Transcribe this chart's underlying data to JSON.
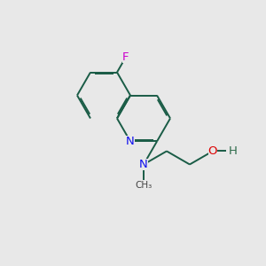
{
  "background_color": "#e8e8e8",
  "bond_color": "#1a5c46",
  "bond_lw": 1.4,
  "dbo": 0.055,
  "sh_inner": 0.15,
  "atom_colors": {
    "N": "#1010ee",
    "F": "#cc00cc",
    "O": "#dd0000",
    "H": "#2d6b4a",
    "C": "#1a5c46"
  },
  "fs": 9.5,
  "sfs": 7.5,
  "fig_w": 3.0,
  "fig_h": 3.0,
  "dpi": 100,
  "xlim": [
    0,
    10
  ],
  "ylim": [
    0,
    10
  ]
}
